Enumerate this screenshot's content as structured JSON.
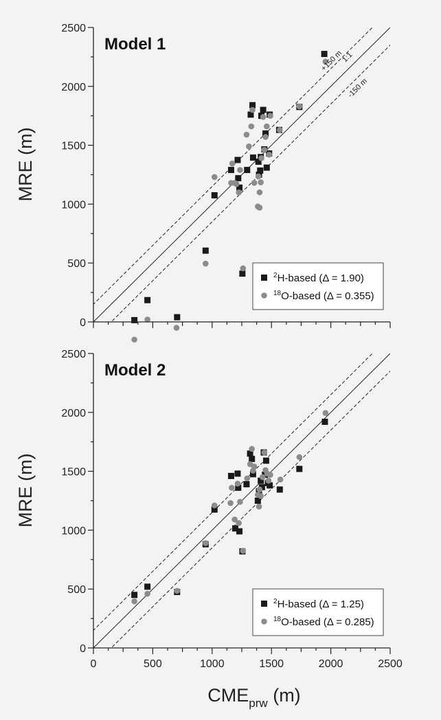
{
  "figure": {
    "xlabel_main": "CME",
    "xlabel_sub": "prw",
    "xlabel_unit": " (m)",
    "colors": {
      "h2": "#1a1a1a",
      "o18": "#8c8c8c",
      "background": "#f3f3f3"
    }
  },
  "chart_data": [
    {
      "type": "scatter",
      "title": "Model 1",
      "xlabel": "CMEprw (m)",
      "ylabel": "MRE (m)",
      "xlim": [
        0,
        2500
      ],
      "ylim": [
        0,
        2500
      ],
      "xticks": [
        0,
        500,
        1000,
        1500,
        2000,
        2500
      ],
      "yticks": [
        "0",
        "500",
        "1000",
        "1500",
        "2000",
        "2500"
      ],
      "xtick_labels_shown": false,
      "legend": "bottom-right",
      "reference_lines": [
        {
          "label": "1:1",
          "offset": 0,
          "style": "solid"
        },
        {
          "label": "+150 m",
          "offset": 150,
          "style": "dashed"
        },
        {
          "label": "-150 m",
          "offset": -150,
          "style": "dashed"
        }
      ],
      "series": [
        {
          "name": "H-based",
          "legend_sup": "2",
          "legend_suffix": " (Δ = 1.90)",
          "marker": "square",
          "color": "#1a1a1a",
          "points": [
            [
              345,
              15
            ],
            [
              455,
              185
            ],
            [
              705,
              40
            ],
            [
              945,
              605
            ],
            [
              1020,
              1075
            ],
            [
              1160,
              1290
            ],
            [
              1215,
              1375
            ],
            [
              1220,
              1220
            ],
            [
              1230,
              1140
            ],
            [
              1255,
              410
            ],
            [
              1295,
              1290
            ],
            [
              1325,
              1760
            ],
            [
              1340,
              1840
            ],
            [
              1345,
              1395
            ],
            [
              1390,
              1360
            ],
            [
              1395,
              1250
            ],
            [
              1405,
              1285
            ],
            [
              1410,
              1400
            ],
            [
              1415,
              1750
            ],
            [
              1430,
              1800
            ],
            [
              1440,
              1465
            ],
            [
              1450,
              1600
            ],
            [
              1460,
              1310
            ],
            [
              1480,
              1430
            ],
            [
              1485,
              1760
            ],
            [
              1565,
              1630
            ],
            [
              1735,
              1825
            ],
            [
              1945,
              2275
            ]
          ]
        },
        {
          "name": "O-based",
          "legend_sup": "18",
          "legend_suffix": " (Δ = 0.355)",
          "marker": "circle",
          "color": "#8c8c8c",
          "points": [
            [
              345,
              -150
            ],
            [
              455,
              20
            ],
            [
              700,
              -50
            ],
            [
              945,
              495
            ],
            [
              1020,
              1230
            ],
            [
              1160,
              1180
            ],
            [
              1170,
              1345
            ],
            [
              1190,
              1180
            ],
            [
              1205,
              1170
            ],
            [
              1225,
              1100
            ],
            [
              1235,
              1290
            ],
            [
              1260,
              455
            ],
            [
              1290,
              1590
            ],
            [
              1310,
              1490
            ],
            [
              1330,
              1660
            ],
            [
              1340,
              1800
            ],
            [
              1355,
              1180
            ],
            [
              1385,
              980
            ],
            [
              1400,
              970
            ],
            [
              1390,
              1235
            ],
            [
              1400,
              1100
            ],
            [
              1410,
              1185
            ],
            [
              1415,
              1390
            ],
            [
              1430,
              1740
            ],
            [
              1440,
              1460
            ],
            [
              1450,
              1570
            ],
            [
              1460,
              1660
            ],
            [
              1480,
              1420
            ],
            [
              1490,
              1750
            ],
            [
              1570,
              1630
            ],
            [
              1735,
              1830
            ],
            [
              1955,
              2210
            ]
          ]
        }
      ]
    },
    {
      "type": "scatter",
      "title": "Model 2",
      "xlabel": "CMEprw (m)",
      "ylabel": "MRE (m)",
      "xlim": [
        0,
        2500
      ],
      "ylim": [
        0,
        2500
      ],
      "xticks": [
        0,
        500,
        1000,
        1500,
        2000,
        2500
      ],
      "yticks": [
        "0",
        "500",
        "1000",
        "1500",
        "2000",
        "2500"
      ],
      "xtick_labels_shown": true,
      "legend": "bottom-right",
      "reference_lines": [
        {
          "label": "1:1",
          "offset": 0,
          "style": "solid"
        },
        {
          "label": "+150 m",
          "offset": 150,
          "style": "dashed"
        },
        {
          "label": "-150 m",
          "offset": -150,
          "style": "dashed"
        }
      ],
      "series": [
        {
          "name": "H-based",
          "legend_sup": "2",
          "legend_suffix": " (Δ = 1.25)",
          "marker": "square",
          "color": "#1a1a1a",
          "points": [
            [
              345,
              450
            ],
            [
              455,
              520
            ],
            [
              705,
              475
            ],
            [
              945,
              880
            ],
            [
              1020,
              1175
            ],
            [
              1160,
              1460
            ],
            [
              1195,
              1015
            ],
            [
              1215,
              1480
            ],
            [
              1220,
              1360
            ],
            [
              1230,
              990
            ],
            [
              1255,
              820
            ],
            [
              1290,
              1390
            ],
            [
              1320,
              1650
            ],
            [
              1335,
              1605
            ],
            [
              1345,
              1475
            ],
            [
              1385,
              1250
            ],
            [
              1395,
              1330
            ],
            [
              1410,
              1420
            ],
            [
              1420,
              1365
            ],
            [
              1435,
              1660
            ],
            [
              1445,
              1470
            ],
            [
              1455,
              1590
            ],
            [
              1470,
              1400
            ],
            [
              1485,
              1380
            ],
            [
              1570,
              1345
            ],
            [
              1735,
              1520
            ],
            [
              1950,
              1920
            ]
          ]
        },
        {
          "name": "O-based",
          "legend_sup": "18",
          "legend_suffix": " (Δ = 0.285)",
          "marker": "circle",
          "color": "#8c8c8c",
          "points": [
            [
              345,
              395
            ],
            [
              455,
              460
            ],
            [
              705,
              485
            ],
            [
              945,
              890
            ],
            [
              1020,
              1210
            ],
            [
              1155,
              1230
            ],
            [
              1165,
              1360
            ],
            [
              1190,
              1090
            ],
            [
              1215,
              1395
            ],
            [
              1225,
              1060
            ],
            [
              1235,
              1240
            ],
            [
              1260,
              825
            ],
            [
              1295,
              1440
            ],
            [
              1320,
              1560
            ],
            [
              1335,
              1690
            ],
            [
              1345,
              1505
            ],
            [
              1355,
              1540
            ],
            [
              1385,
              1300
            ],
            [
              1395,
              1200
            ],
            [
              1400,
              1345
            ],
            [
              1410,
              1290
            ],
            [
              1425,
              1450
            ],
            [
              1440,
              1660
            ],
            [
              1450,
              1510
            ],
            [
              1465,
              1480
            ],
            [
              1475,
              1420
            ],
            [
              1490,
              1470
            ],
            [
              1575,
              1430
            ],
            [
              1735,
              1620
            ],
            [
              1955,
              1995
            ]
          ]
        }
      ]
    }
  ]
}
